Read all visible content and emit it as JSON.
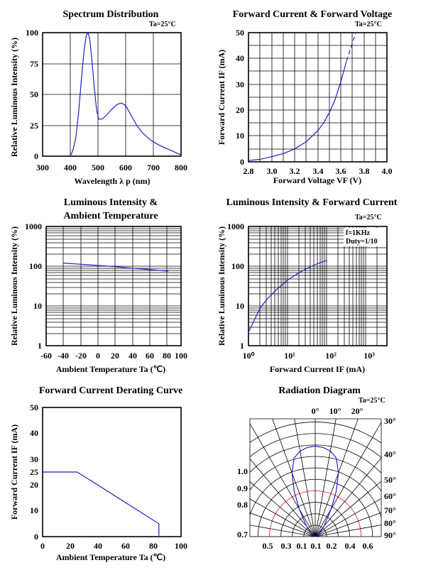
{
  "colors": {
    "curve": "#1f1fc8",
    "radiation_ring": "#e03030",
    "grid": "#000000"
  },
  "chart_data": [
    {
      "id": "spectrum",
      "type": "line",
      "title": "Spectrum Distribution",
      "note": "Ta=25°C",
      "xlabel": "Wavelength  λ p (nm)",
      "ylabel": "Relative Luminous Intensity (%)",
      "xlim": [
        300,
        800
      ],
      "ylim": [
        0,
        100
      ],
      "xticks": [
        "300",
        "400",
        "500",
        "600",
        "700",
        "800"
      ],
      "yticks": [
        "0",
        "25",
        "50",
        "75",
        "100"
      ],
      "grid": true,
      "points": [
        [
          400,
          0
        ],
        [
          410,
          5
        ],
        [
          420,
          15
        ],
        [
          430,
          35
        ],
        [
          440,
          62
        ],
        [
          450,
          86
        ],
        [
          458,
          98
        ],
        [
          464,
          100
        ],
        [
          470,
          95
        ],
        [
          478,
          78
        ],
        [
          487,
          55
        ],
        [
          495,
          37
        ],
        [
          503,
          30
        ],
        [
          515,
          30
        ],
        [
          530,
          33
        ],
        [
          550,
          38
        ],
        [
          570,
          42
        ],
        [
          585,
          43
        ],
        [
          600,
          41
        ],
        [
          620,
          33
        ],
        [
          640,
          25
        ],
        [
          660,
          19
        ],
        [
          690,
          13
        ],
        [
          720,
          9
        ],
        [
          760,
          5
        ],
        [
          800,
          1
        ]
      ]
    },
    {
      "id": "iv",
      "type": "line",
      "title": "Forward Current & Forward Voltage",
      "note": "Ta=25°C",
      "xlabel": "Forward Voltage  VF (V)",
      "ylabel": "Forward Current IF (mA)",
      "xlim": [
        2.8,
        4.0
      ],
      "ylim": [
        0,
        50
      ],
      "xticks": [
        "2.8",
        "3.0",
        "3.2",
        "3.4",
        "3.6",
        "3.8",
        "4.0"
      ],
      "yticks": [
        "0",
        "10",
        "20",
        "30",
        "40",
        "50"
      ],
      "grid": true,
      "points": [
        [
          2.8,
          0.5
        ],
        [
          2.9,
          1.0
        ],
        [
          3.0,
          2.0
        ],
        [
          3.1,
          3.2
        ],
        [
          3.2,
          5.0
        ],
        [
          3.3,
          7.8
        ],
        [
          3.4,
          12
        ],
        [
          3.45,
          15
        ],
        [
          3.5,
          19
        ],
        [
          3.55,
          24
        ],
        [
          3.6,
          31
        ],
        [
          3.65,
          39
        ]
      ],
      "dashed_points": [
        [
          3.65,
          39
        ],
        [
          3.7,
          46
        ],
        [
          3.73,
          50
        ]
      ]
    },
    {
      "id": "temp",
      "type": "line",
      "title": "Luminous Intensity &",
      "title2": "Ambient Temperature",
      "xlabel": "Ambient Temperature Ta (℃)",
      "ylabel": "Relative Luminous Intensity (%)",
      "xlim": [
        -60,
        100
      ],
      "ylog": [
        1,
        1000
      ],
      "xticks": [
        "-60",
        "-40",
        "-20",
        "0",
        "20",
        "40",
        "60",
        "80",
        "100"
      ],
      "yticks": [
        "1",
        "10",
        "100",
        "1000"
      ],
      "grid": true,
      "points": [
        [
          -40,
          120
        ],
        [
          -20,
          112
        ],
        [
          0,
          105
        ],
        [
          20,
          98
        ],
        [
          40,
          90
        ],
        [
          60,
          83
        ],
        [
          85,
          75
        ]
      ]
    },
    {
      "id": "ifcurve",
      "type": "line",
      "title": "Luminous Intensity & Forward Current",
      "note": "Ta=25°C",
      "note2": "f=1KHz",
      "note3": "Duty=1/10",
      "xlabel": "Forward Current IF (mA)",
      "ylabel": "Relative Luminous Intensity (%)",
      "xlog": [
        1,
        1000
      ],
      "ylog": [
        1,
        1000
      ],
      "xticks": [
        "10⁰",
        "10¹",
        "10²",
        "10³"
      ],
      "yticks": [
        "1",
        "10",
        "100",
        "1000"
      ],
      "grid": true,
      "points": [
        [
          1,
          2.2
        ],
        [
          1.5,
          5
        ],
        [
          2,
          9
        ],
        [
          3,
          15
        ],
        [
          5,
          25
        ],
        [
          10,
          45
        ],
        [
          20,
          70
        ],
        [
          40,
          100
        ],
        [
          70,
          125
        ],
        [
          100,
          140
        ]
      ]
    },
    {
      "id": "derating",
      "type": "line",
      "title": "Forward Current Derating Curve",
      "xlabel": "Ambient Temperature Ta (℃)",
      "ylabel": "Forward Current IF (mA)",
      "xlim": [
        0,
        100
      ],
      "ylim": [
        0,
        50
      ],
      "xticks": [
        "0",
        "20",
        "40",
        "60",
        "80",
        "100"
      ],
      "yticks": [
        "0",
        "10",
        "20",
        "25",
        "30",
        "40",
        "50"
      ],
      "grid": false,
      "points": [
        [
          0,
          25
        ],
        [
          25,
          25
        ],
        [
          84,
          5
        ],
        [
          84,
          0
        ]
      ]
    },
    {
      "id": "radiation",
      "type": "polar",
      "title": "Radiation Diagram",
      "note": "Ta=25°C",
      "angle_labels": [
        "0°",
        "10°",
        "20°",
        "30°",
        "40°",
        "50°",
        "60°",
        "70°",
        "80°",
        "90°"
      ],
      "left_labels": [
        "1.0",
        "0.9",
        "0.8",
        "0.7"
      ],
      "bottom_labels": [
        "0.5",
        "0.3",
        "0.1",
        "0.1",
        "0.2",
        "0.4",
        "0.6"
      ],
      "pattern": [
        [
          0,
          1.0
        ],
        [
          5,
          0.99
        ],
        [
          10,
          0.96
        ],
        [
          15,
          0.9
        ],
        [
          20,
          0.75
        ],
        [
          25,
          0.55
        ],
        [
          30,
          0.35
        ],
        [
          40,
          0.15
        ],
        [
          50,
          0.06
        ],
        [
          60,
          0.02
        ],
        [
          70,
          0.0
        ]
      ]
    }
  ]
}
